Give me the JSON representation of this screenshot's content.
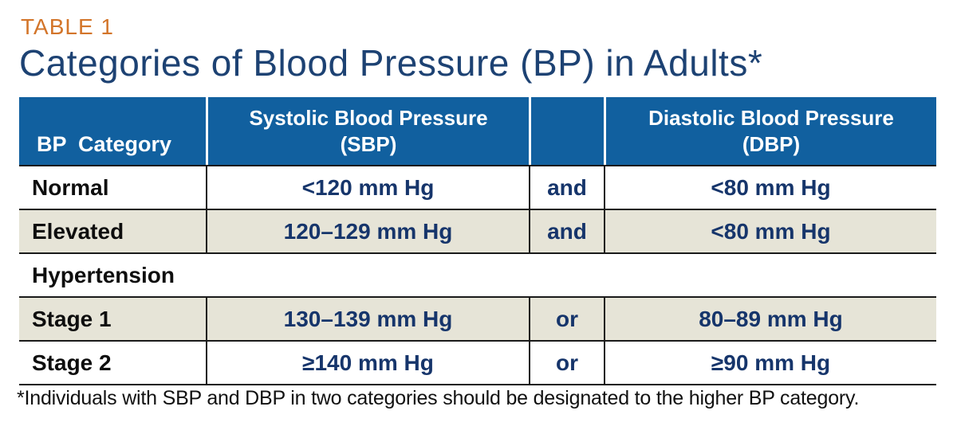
{
  "page": {
    "eyebrow": "TABLE 1",
    "title": "Categories of Blood Pressure (BP) in Adults*",
    "footnote": "*Individuals with SBP and DBP in two categories should be designated to the higher BP category."
  },
  "colors": {
    "header_blue": "#11609F",
    "accent_orange": "#D3752A",
    "title_navy": "#1D4273",
    "value_navy": "#16356B",
    "shaded_row_beige": "#E6E4D7",
    "rule_dark": "#1a1a1a"
  },
  "table": {
    "headers": {
      "category": "BP  Category",
      "systolic_line1": "Systolic Blood Pressure",
      "systolic_line2": "(SBP)",
      "connector": "",
      "diastolic_line1": "Diastolic Blood Pressure",
      "diastolic_line2": "(DBP)"
    },
    "rows": [
      {
        "category": "Normal",
        "sbp": "<120 mm Hg",
        "connector": "and",
        "dbp": "<80 mm Hg"
      },
      {
        "category": "Elevated",
        "sbp": "120–129 mm Hg",
        "connector": "and",
        "dbp": "<80 mm Hg"
      },
      {
        "category": "Hypertension"
      },
      {
        "category": "Stage 1",
        "sbp": "130–139 mm Hg",
        "connector": "or",
        "dbp": "80–89 mm Hg"
      },
      {
        "category": "Stage 2",
        "sbp": "≥140 mm Hg",
        "connector": "or",
        "dbp": "≥90 mm Hg"
      }
    ]
  }
}
